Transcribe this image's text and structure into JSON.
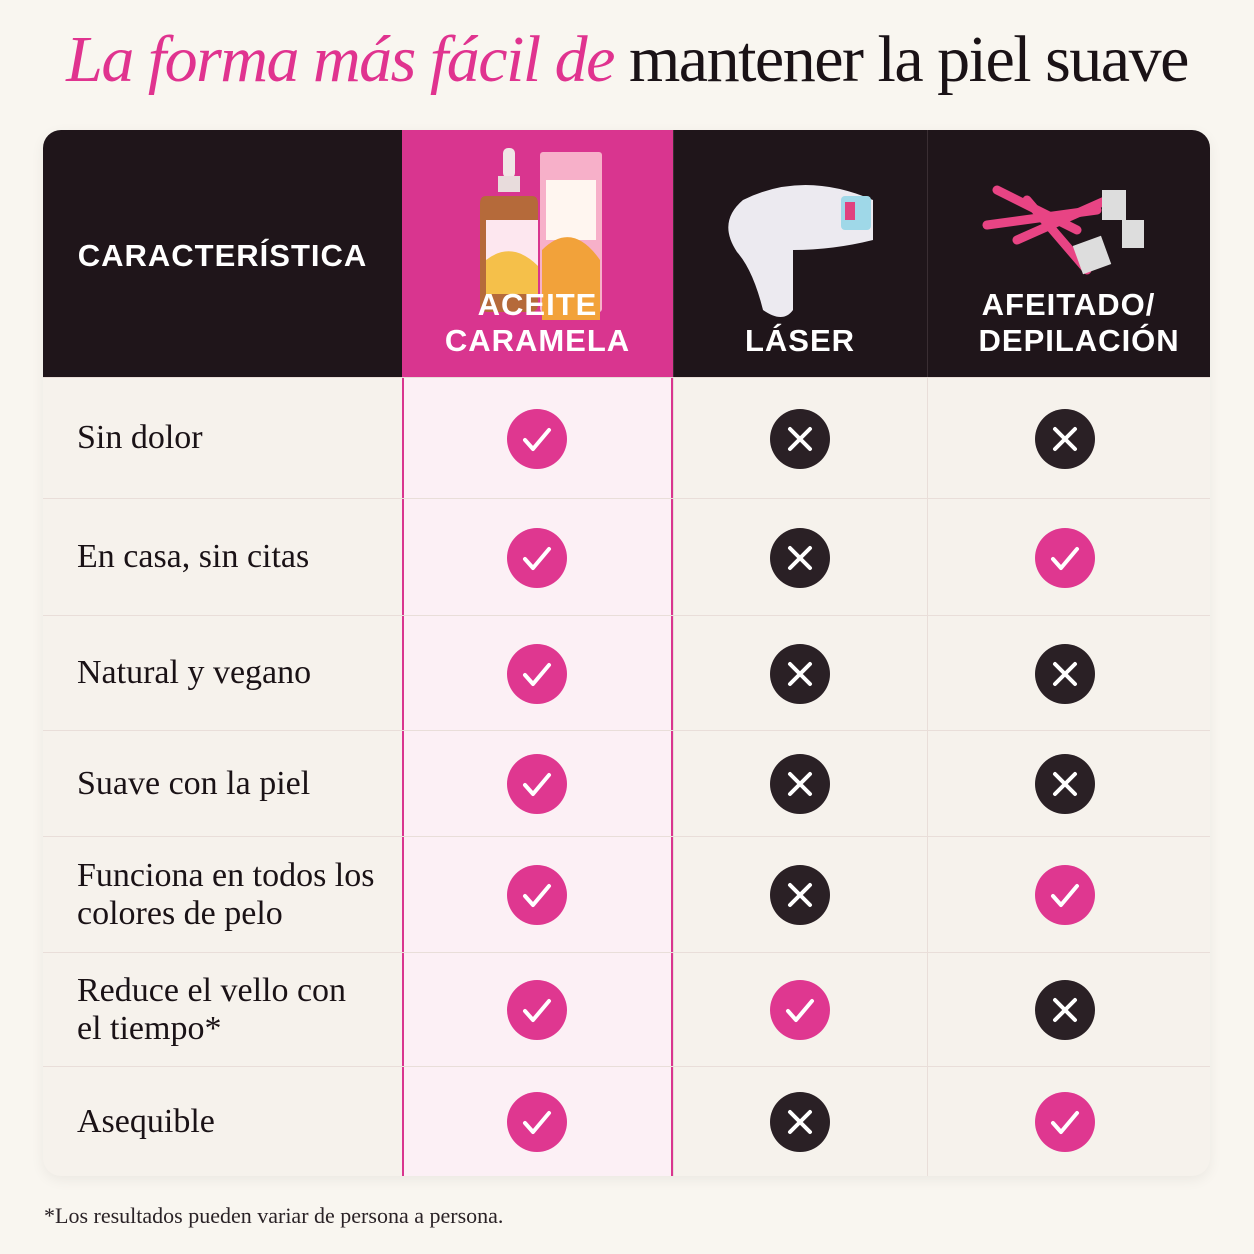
{
  "title": {
    "highlight": "La forma más fácil de",
    "rest": "mantener la piel suave"
  },
  "table": {
    "columns": [
      "CARACTERÍSTICA",
      "ACEITE CARAMELA",
      "LÁSER",
      "AFEITADO/ DEPILACIÓN"
    ],
    "rows": [
      {
        "label": "Sin dolor",
        "values": [
          true,
          false,
          false
        ]
      },
      {
        "label": "En casa, sin citas",
        "values": [
          true,
          false,
          true
        ]
      },
      {
        "label": "Natural y vegano",
        "values": [
          true,
          false,
          false
        ]
      },
      {
        "label": "Suave con la piel",
        "values": [
          true,
          false,
          false
        ]
      },
      {
        "label": "Funciona en todos los colores de pelo",
        "values": [
          true,
          false,
          true
        ]
      },
      {
        "label": "Reduce el vello con el tiempo*",
        "values": [
          true,
          true,
          false
        ]
      },
      {
        "label": "Asequible",
        "values": [
          true,
          false,
          true
        ]
      }
    ]
  },
  "footnote": "*Los resultados pueden variar de persona a persona."
}
